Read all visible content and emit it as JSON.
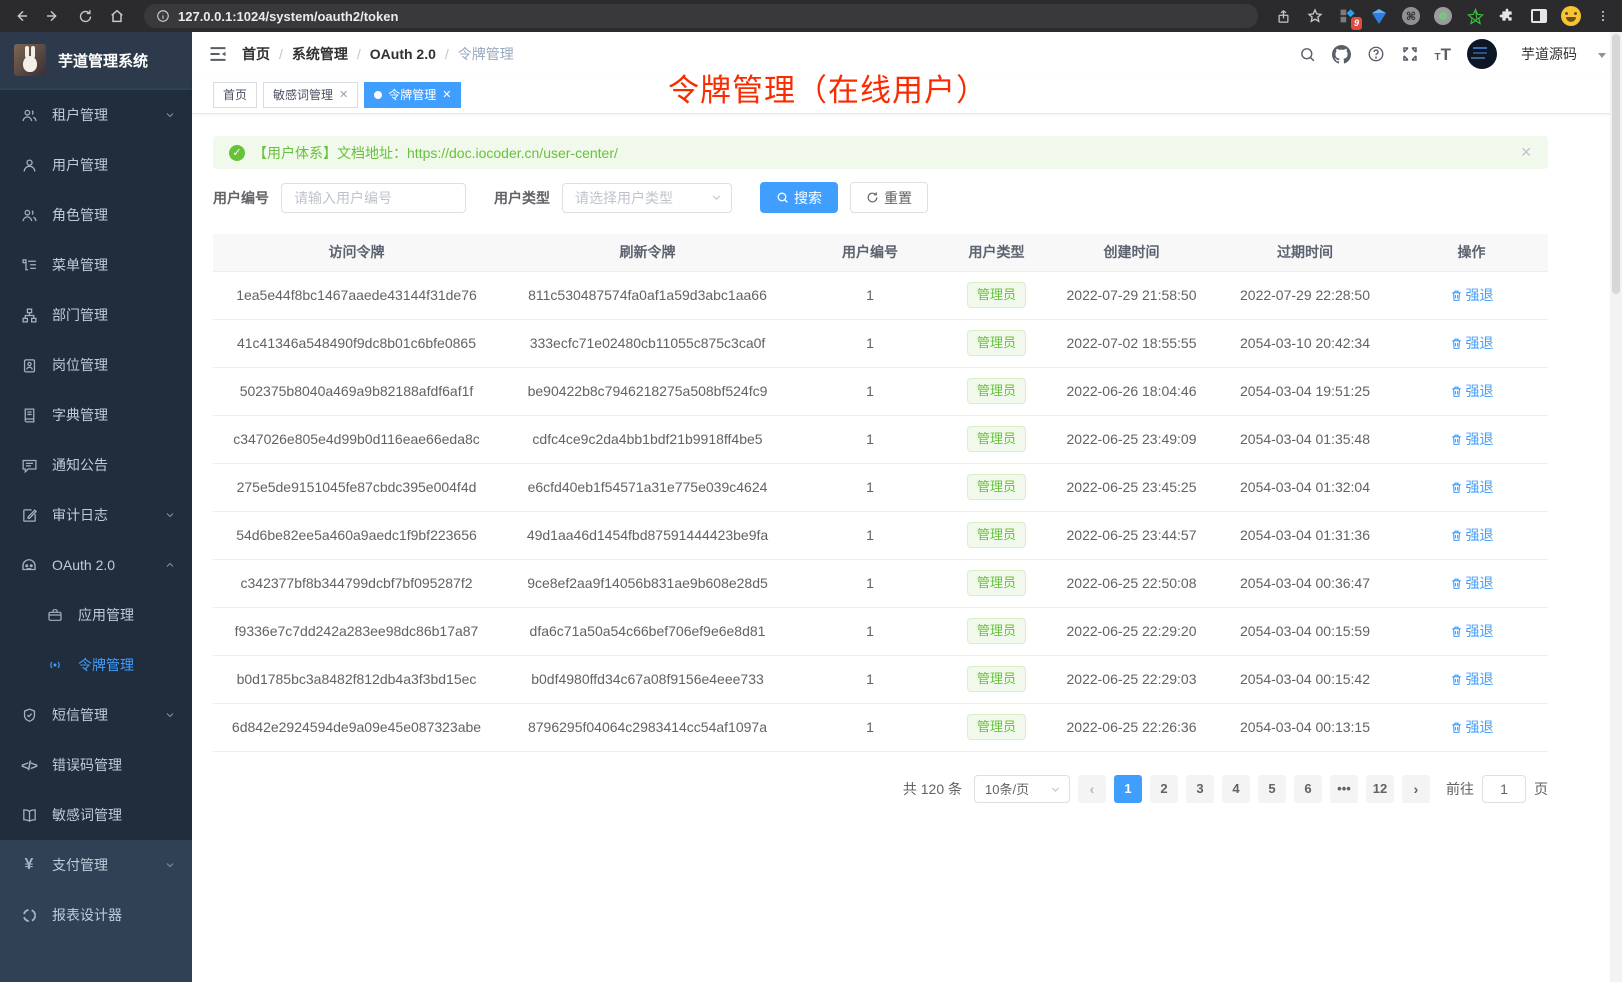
{
  "colors": {
    "accent": "#409eff",
    "success": "#67c23a",
    "annotation": "#fb2b00",
    "sidebar_dark": "#1f2d3d",
    "sidebar_light": "#304156"
  },
  "browser": {
    "url": "127.0.0.1:1024/system/oauth2/token",
    "extension_badge": "9"
  },
  "sidebar": {
    "logo_title": "芋道管理系统",
    "items": [
      {
        "label": "租户管理"
      },
      {
        "label": "用户管理"
      },
      {
        "label": "角色管理"
      },
      {
        "label": "菜单管理"
      },
      {
        "label": "部门管理"
      },
      {
        "label": "岗位管理"
      },
      {
        "label": "字典管理"
      },
      {
        "label": "通知公告"
      },
      {
        "label": "审计日志"
      },
      {
        "label": "OAuth 2.0"
      },
      {
        "label": "应用管理"
      },
      {
        "label": "令牌管理"
      },
      {
        "label": "短信管理"
      },
      {
        "label": "错误码管理"
      },
      {
        "label": "敏感词管理"
      },
      {
        "label": "支付管理"
      },
      {
        "label": "报表设计器"
      }
    ]
  },
  "header": {
    "breadcrumb": [
      "首页",
      "系统管理",
      "OAuth 2.0",
      "令牌管理"
    ],
    "user_name": "芋道源码"
  },
  "tabs": [
    {
      "label": "首页"
    },
    {
      "label": "敏感词管理"
    },
    {
      "label": "令牌管理"
    }
  ],
  "annotation": "令牌管理（在线用户）",
  "alert": {
    "text": "【用户体系】文档地址：",
    "link": "https://doc.iocoder.cn/user-center/"
  },
  "filters": {
    "user_id_label": "用户编号",
    "user_id_placeholder": "请输入用户编号",
    "user_type_label": "用户类型",
    "user_type_placeholder": "请选择用户类型",
    "search_label": "搜索",
    "reset_label": "重置"
  },
  "table": {
    "columns": [
      "访问令牌",
      "刷新令牌",
      "用户编号",
      "用户类型",
      "创建时间",
      "过期时间",
      "操作"
    ],
    "rows": [
      {
        "access": "1ea5e44f8bc1467aaede43144f31de76",
        "refresh": "811c530487574fa0af1a59d3abc1aa66",
        "uid": "1",
        "utype": "管理员",
        "ctime": "2022-07-29 21:58:50",
        "etime": "2022-07-29 22:28:50",
        "action": "强退"
      },
      {
        "access": "41c41346a548490f9dc8b01c6bfe0865",
        "refresh": "333ecfc71e02480cb11055c875c3ca0f",
        "uid": "1",
        "utype": "管理员",
        "ctime": "2022-07-02 18:55:55",
        "etime": "2054-03-10 20:42:34",
        "action": "强退"
      },
      {
        "access": "502375b8040a469a9b82188afdf6af1f",
        "refresh": "be90422b8c7946218275a508bf524fc9",
        "uid": "1",
        "utype": "管理员",
        "ctime": "2022-06-26 18:04:46",
        "etime": "2054-03-04 19:51:25",
        "action": "强退"
      },
      {
        "access": "c347026e805e4d99b0d116eae66eda8c",
        "refresh": "cdfc4ce9c2da4bb1bdf21b9918ff4be5",
        "uid": "1",
        "utype": "管理员",
        "ctime": "2022-06-25 23:49:09",
        "etime": "2054-03-04 01:35:48",
        "action": "强退"
      },
      {
        "access": "275e5de9151045fe87cbdc395e004f4d",
        "refresh": "e6cfd40eb1f54571a31e775e039c4624",
        "uid": "1",
        "utype": "管理员",
        "ctime": "2022-06-25 23:45:25",
        "etime": "2054-03-04 01:32:04",
        "action": "强退"
      },
      {
        "access": "54d6be82ee5a460a9aedc1f9bf223656",
        "refresh": "49d1aa46d1454fbd87591444423be9fa",
        "uid": "1",
        "utype": "管理员",
        "ctime": "2022-06-25 23:44:57",
        "etime": "2054-03-04 01:31:36",
        "action": "强退"
      },
      {
        "access": "c342377bf8b344799dcbf7bf095287f2",
        "refresh": "9ce8ef2aa9f14056b831ae9b608e28d5",
        "uid": "1",
        "utype": "管理员",
        "ctime": "2022-06-25 22:50:08",
        "etime": "2054-03-04 00:36:47",
        "action": "强退"
      },
      {
        "access": "f9336e7c7dd242a283ee98dc86b17a87",
        "refresh": "dfa6c71a50a54c66bef706ef9e6e8d81",
        "uid": "1",
        "utype": "管理员",
        "ctime": "2022-06-25 22:29:20",
        "etime": "2054-03-04 00:15:59",
        "action": "强退"
      },
      {
        "access": "b0d1785bc3a8482f812db4a3f3bd15ec",
        "refresh": "b0df4980ffd34c67a08f9156e4eee733",
        "uid": "1",
        "utype": "管理员",
        "ctime": "2022-06-25 22:29:03",
        "etime": "2054-03-04 00:15:42",
        "action": "强退"
      },
      {
        "access": "6d842e2924594de9a09e45e087323abe",
        "refresh": "8796295f04064c2983414cc54af1097a",
        "uid": "1",
        "utype": "管理员",
        "ctime": "2022-06-25 22:26:36",
        "etime": "2054-03-04 00:13:15",
        "action": "强退"
      }
    ]
  },
  "pagination": {
    "total": "共 120 条",
    "page_size": "10条/页",
    "pages": [
      "1",
      "2",
      "3",
      "4",
      "5",
      "6",
      "•••",
      "12"
    ],
    "active_page": "1",
    "goto_label": "前往",
    "goto_value": "1",
    "goto_suffix": "页"
  }
}
